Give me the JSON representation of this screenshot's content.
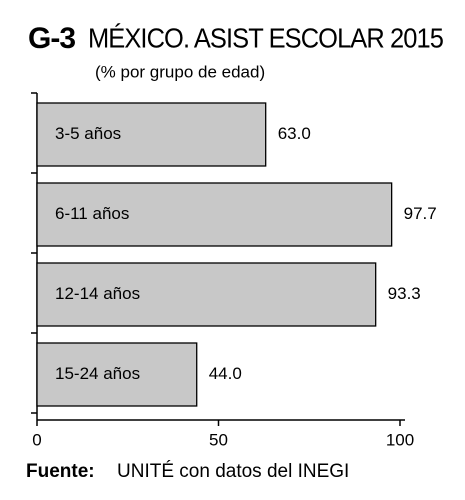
{
  "chart_data": {
    "type": "bar",
    "orientation": "horizontal",
    "label": "G-3",
    "title": "MÉXICO. ASIST ESCOLAR 2015",
    "subtitle": "(% por grupo de edad)",
    "categories": [
      "3-5 años",
      "6-11 años",
      "12-14 años",
      "15-24 años"
    ],
    "values": [
      63.0,
      97.7,
      93.3,
      44.0
    ],
    "value_labels": [
      "63.0",
      "97.7",
      "93.3",
      "44.0"
    ],
    "color": "#c8c8c8",
    "xlim": [
      0,
      100
    ],
    "xticks": [
      0,
      50,
      100
    ],
    "source_label": "Fuente:",
    "source": "UNITÉ con datos del INEGI"
  }
}
